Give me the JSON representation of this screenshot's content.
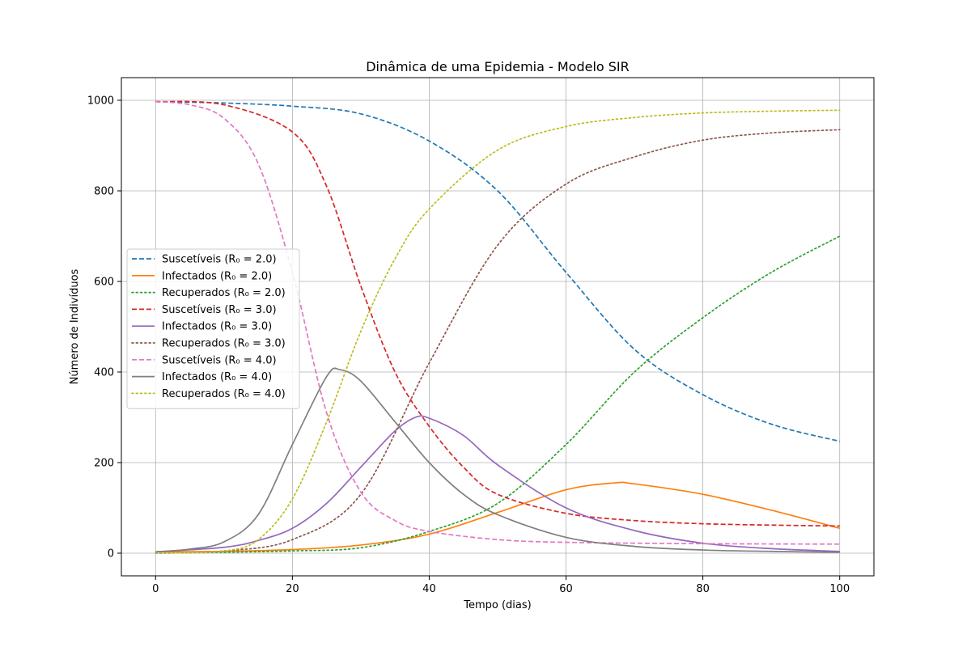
{
  "chart_data": {
    "type": "line",
    "title": "Dinâmica de uma Epidemia - Modelo SIR",
    "xlabel": "Tempo (dias)",
    "ylabel": "Número de Indivíduos",
    "xlim": [
      -5,
      105
    ],
    "ylim": [
      -50,
      1050
    ],
    "xticks": [
      0,
      20,
      40,
      60,
      80,
      100
    ],
    "yticks": [
      0,
      200,
      400,
      600,
      800,
      1000
    ],
    "grid": true,
    "legend_position": "center-left",
    "series": [
      {
        "name": "Suscetíveis (R₀ = 2.0)",
        "color": "#1f77b4",
        "style": "dashed",
        "x": [
          0,
          10,
          20,
          30,
          40,
          50,
          60,
          70,
          80,
          90,
          100
        ],
        "y": [
          997,
          994,
          987,
          970,
          910,
          800,
          620,
          450,
          350,
          285,
          247
        ]
      },
      {
        "name": "Infectados (R₀ = 2.0)",
        "color": "#ff7f0e",
        "style": "solid",
        "x": [
          0,
          10,
          20,
          30,
          40,
          50,
          60,
          67,
          70,
          80,
          90,
          100
        ],
        "y": [
          3,
          4,
          8,
          18,
          42,
          90,
          140,
          155,
          153,
          130,
          95,
          55
        ]
      },
      {
        "name": "Recuperados (R₀ = 2.0)",
        "color": "#2ca02c",
        "style": "dotted",
        "x": [
          0,
          10,
          20,
          30,
          40,
          50,
          60,
          70,
          80,
          90,
          100
        ],
        "y": [
          0,
          2,
          5,
          12,
          48,
          110,
          240,
          400,
          520,
          620,
          700
        ]
      },
      {
        "name": "Suscetíveis (R₀ = 3.0)",
        "color": "#d62728",
        "style": "dashed",
        "x": [
          0,
          10,
          20,
          25,
          30,
          35,
          40,
          45,
          50,
          60,
          70,
          80,
          90,
          100
        ],
        "y": [
          997,
          990,
          930,
          810,
          590,
          400,
          280,
          190,
          130,
          88,
          72,
          65,
          62,
          60
        ]
      },
      {
        "name": "Infectados (R₀ = 3.0)",
        "color": "#9467bd",
        "style": "solid",
        "x": [
          0,
          10,
          15,
          20,
          25,
          30,
          35,
          38,
          40,
          45,
          50,
          60,
          70,
          80,
          90,
          100
        ],
        "y": [
          3,
          13,
          28,
          55,
          110,
          190,
          270,
          300,
          298,
          260,
          195,
          100,
          50,
          22,
          10,
          4
        ]
      },
      {
        "name": "Recuperados (R₀ = 3.0)",
        "color": "#8c564b",
        "style": "dotted",
        "x": [
          0,
          10,
          20,
          30,
          40,
          50,
          60,
          70,
          80,
          90,
          100
        ],
        "y": [
          0,
          5,
          30,
          130,
          420,
          680,
          815,
          875,
          912,
          928,
          935
        ]
      },
      {
        "name": "Suscetíveis (R₀ = 4.0)",
        "color": "#e377c2",
        "style": "dashed",
        "x": [
          0,
          5,
          10,
          15,
          20,
          25,
          30,
          35,
          40,
          50,
          60,
          80,
          100
        ],
        "y": [
          997,
          990,
          960,
          860,
          620,
          310,
          135,
          72,
          48,
          30,
          24,
          21,
          20
        ]
      },
      {
        "name": "Infectados (R₀ = 4.0)",
        "color": "#7f7f7f",
        "style": "solid",
        "x": [
          0,
          5,
          10,
          15,
          20,
          25,
          27,
          30,
          35,
          40,
          45,
          50,
          60,
          70,
          80,
          90,
          100
        ],
        "y": [
          3,
          9,
          25,
          85,
          240,
          390,
          405,
          380,
          290,
          200,
          130,
          85,
          35,
          15,
          7,
          4,
          2
        ]
      },
      {
        "name": "Recuperados (R₀ = 4.0)",
        "color": "#bcbd22",
        "style": "dotted",
        "x": [
          0,
          10,
          15,
          20,
          25,
          30,
          35,
          40,
          50,
          60,
          70,
          80,
          90,
          100
        ],
        "y": [
          0,
          5,
          30,
          120,
          290,
          490,
          650,
          760,
          890,
          942,
          962,
          972,
          976,
          978
        ]
      }
    ]
  }
}
